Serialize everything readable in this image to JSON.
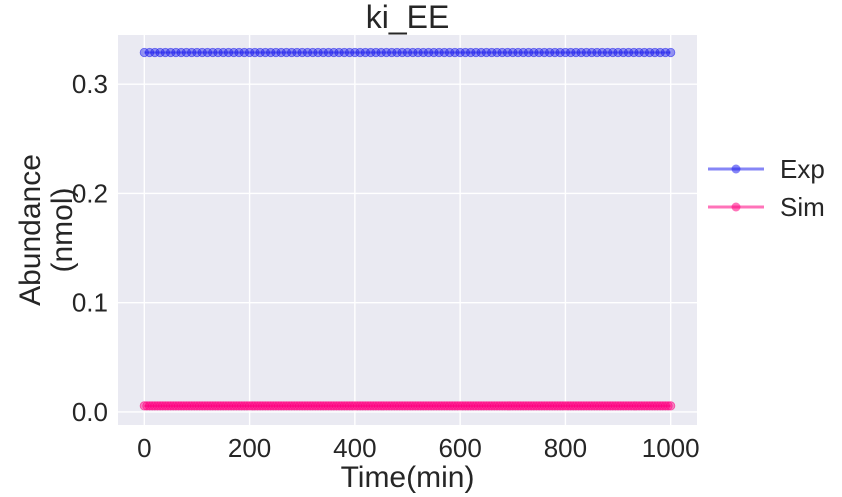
{
  "chart_data": {
    "type": "line",
    "title": "ki_EE",
    "xlabel": "Time(min)",
    "ylabel_lines": [
      "Abundance",
      "(nmol)"
    ],
    "xlim": [
      -50,
      1050
    ],
    "ylim": [
      -0.012,
      0.345
    ],
    "xticks": [
      0,
      200,
      400,
      600,
      800,
      1000
    ],
    "xtick_labels": [
      "0",
      "200",
      "400",
      "600",
      "800",
      "1000"
    ],
    "yticks": [
      0.0,
      0.1,
      0.2,
      0.3
    ],
    "ytick_labels": [
      "0.0",
      "0.1",
      "0.2",
      "0.3"
    ],
    "grid": true,
    "legend_position": "right-outside",
    "x": {
      "start": 0,
      "stop": 1000,
      "step": 10
    },
    "series": [
      {
        "name": "Exp",
        "color": "#2222ee",
        "constant_value": 0.329,
        "marker_step": 10
      },
      {
        "name": "Sim",
        "color": "#ff0080",
        "constant_value": 0.0055,
        "marker_step": 5
      }
    ]
  }
}
